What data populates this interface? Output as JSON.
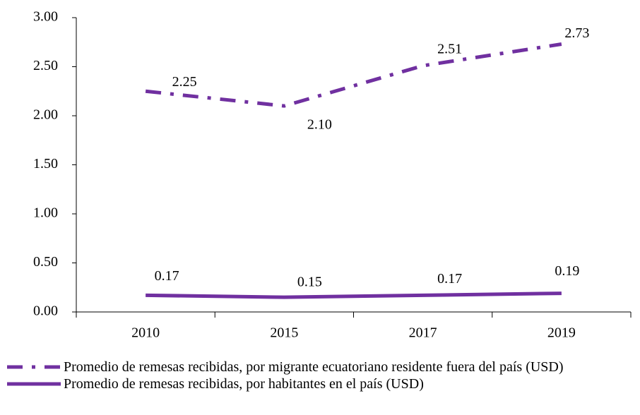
{
  "chart_data": {
    "type": "line",
    "categories": [
      "2010",
      "2015",
      "2017",
      "2019"
    ],
    "series": [
      {
        "name": "Promedio de remesas recibidas, por migrante ecuatoriano residente fuera del país (USD)",
        "color": "#7030a0",
        "style": "dashdot",
        "values": [
          2.25,
          2.1,
          2.51,
          2.73
        ],
        "value_labels": [
          "2.25",
          "2.10",
          "2.51",
          "2.73"
        ]
      },
      {
        "name": "Promedio de remesas recibidas, por habitantes en el país (USD)",
        "color": "#7030a0",
        "style": "solid",
        "values": [
          0.17,
          0.15,
          0.17,
          0.19
        ],
        "value_labels": [
          "0.17",
          "0.15",
          "0.17",
          "0.19"
        ]
      }
    ],
    "ylim": [
      0,
      3
    ],
    "yticks": [
      {
        "value": 0,
        "label": "0.00"
      },
      {
        "value": 0.5,
        "label": "0.50"
      },
      {
        "value": 1,
        "label": "1.00"
      },
      {
        "value": 1.5,
        "label": "1.50"
      },
      {
        "value": 2,
        "label": "2.00"
      },
      {
        "value": 2.5,
        "label": "2.50"
      },
      {
        "value": 3,
        "label": "3.00"
      }
    ],
    "grid": false,
    "legend": "bottom"
  }
}
